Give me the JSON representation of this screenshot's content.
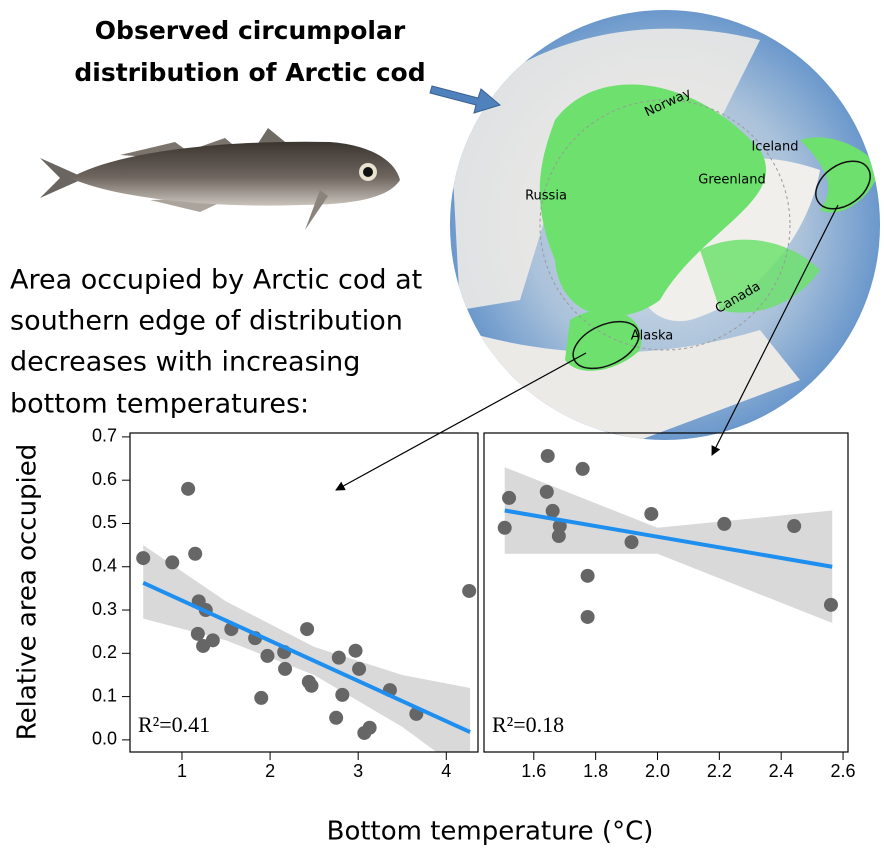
{
  "title_lines": [
    "Observed circumpolar",
    "distribution of Arctic cod"
  ],
  "description_lines": [
    "Area occupied by Arctic cod at",
    "southern edge of distribution",
    "decreases with increasing",
    "bottom temperatures:"
  ],
  "map_labels": [
    "Norway",
    "Iceland",
    "Russia",
    "Greenland",
    "Canada",
    "Alaska"
  ],
  "xlabel": "Bottom temperature (°C)",
  "chart_data": [
    {
      "type": "scatter",
      "ylabel": "Relative area occupied",
      "annotation": "R²=0.41",
      "xlim": [
        0.41,
        4.36
      ],
      "ylim": [
        -0.028,
        0.709
      ],
      "xticks": [
        1,
        2,
        3,
        4
      ],
      "yticks": [
        {
          "value": 0,
          "label": "0.0"
        },
        0.1,
        0.2,
        0.3,
        0.4,
        0.5,
        0.6,
        0.7
      ],
      "point_color": "#666666",
      "line_color": "#1e8fef",
      "band_color": "#d9d9d9",
      "x": [
        0.56,
        0.89,
        1.07,
        1.15,
        1.19,
        1.18,
        1.24,
        1.27,
        1.35,
        1.56,
        1.83,
        1.9,
        1.97,
        2.16,
        2.17,
        2.42,
        2.44,
        2.47,
        2.75,
        2.78,
        2.82,
        2.97,
        3.01,
        3.07,
        3.13,
        3.36,
        3.66,
        4.26
      ],
      "values": [
        0.42,
        0.41,
        0.58,
        0.43,
        0.32,
        0.245,
        0.217,
        0.3,
        0.23,
        0.256,
        0.235,
        0.097,
        0.194,
        0.203,
        0.164,
        0.256,
        0.134,
        0.125,
        0.051,
        0.19,
        0.104,
        0.206,
        0.164,
        0.016,
        0.028,
        0.115,
        0.06,
        0.344
      ],
      "fit": {
        "x": [
          0.56,
          4.27
        ],
        "values": [
          0.363,
          0.018
        ]
      },
      "ci": {
        "x": [
          0.56,
          1.5,
          2.5,
          3.5,
          4.27
        ],
        "upper": [
          0.45,
          0.32,
          0.215,
          0.15,
          0.12
        ],
        "lower": [
          0.28,
          0.23,
          0.15,
          0.03,
          -0.085
        ]
      }
    },
    {
      "type": "scatter",
      "annotation": "R²=0.18",
      "xlim": [
        1.439,
        2.616
      ],
      "ylim": [
        -0.028,
        0.709
      ],
      "xticks": [
        1.6,
        1.8,
        {
          "value": 2.0,
          "label": "2.0"
        },
        2.2,
        2.4,
        2.6
      ],
      "point_color": "#666666",
      "line_color": "#1e8fef",
      "band_color": "#d9d9d9",
      "x": [
        1.506,
        1.52,
        1.645,
        1.642,
        1.661,
        1.684,
        1.681,
        1.758,
        1.774,
        1.774,
        1.916,
        1.98,
        2.216,
        2.442,
        2.561
      ],
      "values": [
        0.49,
        0.559,
        0.656,
        0.573,
        0.529,
        0.494,
        0.471,
        0.626,
        0.379,
        0.284,
        0.457,
        0.522,
        0.499,
        0.494,
        0.312
      ],
      "fit": {
        "x": [
          1.506,
          2.565
        ],
        "values": [
          0.53,
          0.4
        ]
      },
      "ci": {
        "x": [
          1.506,
          2.0,
          2.565
        ],
        "upper": [
          0.63,
          0.49,
          0.53
        ],
        "lower": [
          0.43,
          0.43,
          0.27
        ]
      }
    }
  ]
}
